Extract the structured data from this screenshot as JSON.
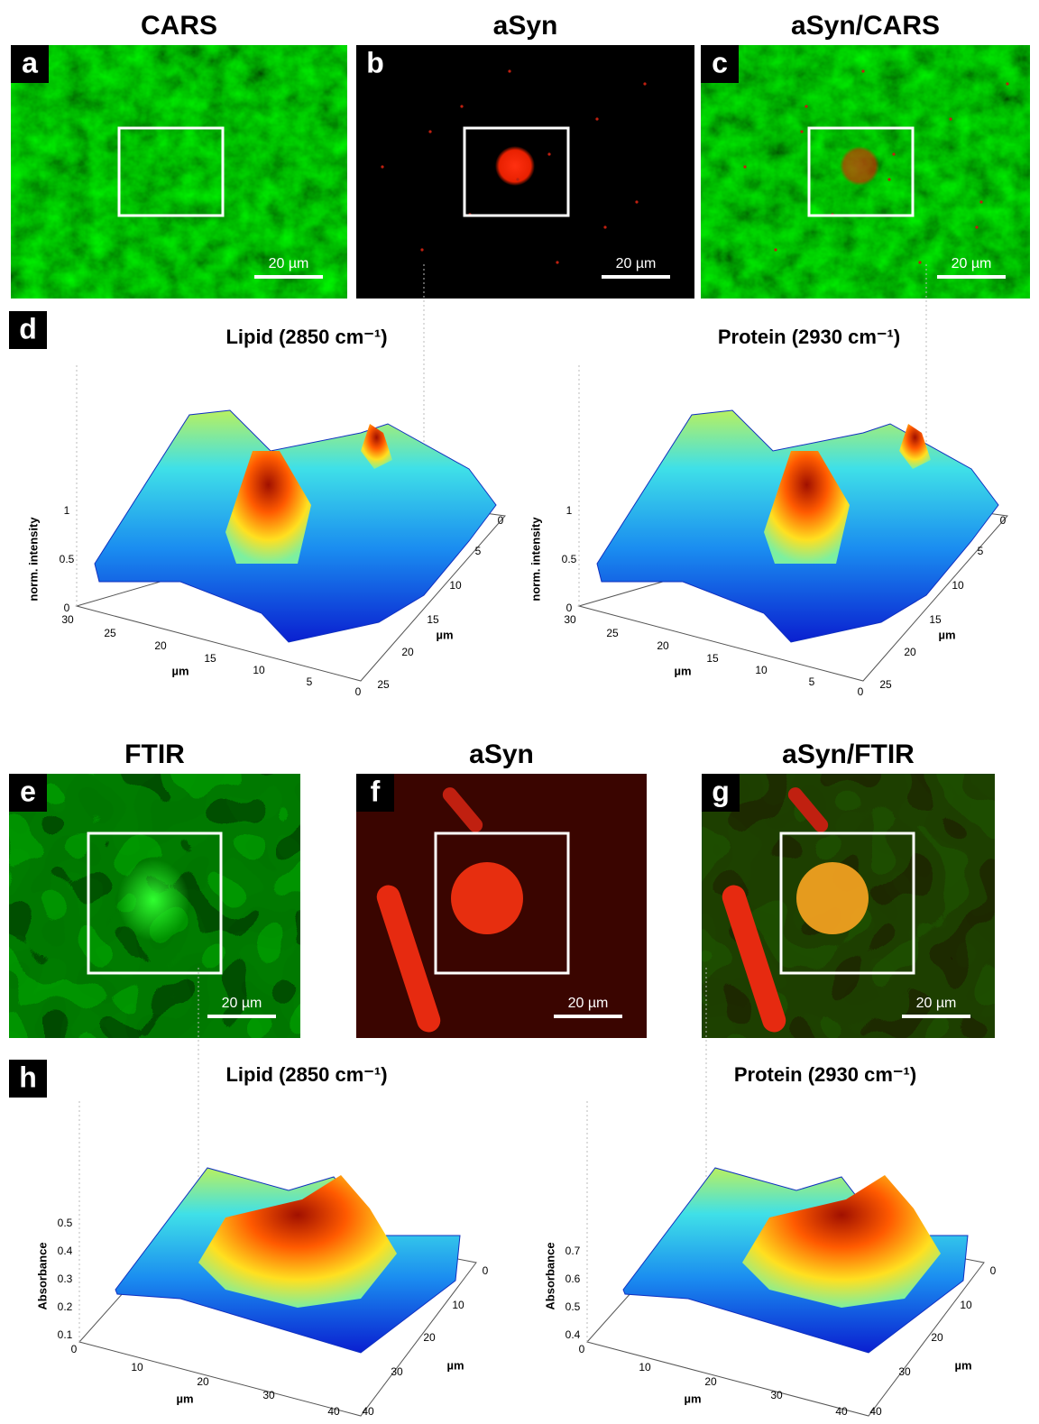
{
  "top_row": {
    "panels": [
      {
        "title": "CARS",
        "letter": "a",
        "scale_bar": "20 µm"
      },
      {
        "title": "aSyn",
        "letter": "b",
        "scale_bar": "20 µm"
      },
      {
        "title": "aSyn/CARS",
        "letter": "c",
        "scale_bar": "20 µm"
      }
    ]
  },
  "cars_plots": {
    "letter": "d",
    "plots": [
      {
        "title": "Lipid (2850 cm⁻¹)",
        "z_label": "norm. intensity",
        "x_label": "µm",
        "y_label": "µm",
        "z_ticks": [
          "0",
          "0.5",
          "1"
        ],
        "x_ticks": [
          "30",
          "25",
          "20",
          "15",
          "10",
          "5",
          "0"
        ],
        "y_ticks": [
          "0",
          "5",
          "10",
          "15",
          "20",
          "25"
        ]
      },
      {
        "title": "Protein (2930 cm⁻¹)",
        "z_label": "norm. intensity",
        "x_label": "µm",
        "y_label": "µm",
        "z_ticks": [
          "0",
          "0.5",
          "1"
        ],
        "x_ticks": [
          "30",
          "25",
          "20",
          "15",
          "10",
          "5",
          "0"
        ],
        "y_ticks": [
          "0",
          "5",
          "10",
          "15",
          "20",
          "25"
        ]
      }
    ]
  },
  "ftir_row": {
    "panels": [
      {
        "title": "FTIR",
        "letter": "e",
        "scale_bar": "20 µm"
      },
      {
        "title": "aSyn",
        "letter": "f",
        "scale_bar": "20 µm"
      },
      {
        "title": "aSyn/FTIR",
        "letter": "g",
        "scale_bar": "20 µm"
      }
    ]
  },
  "ftir_plots": {
    "letter": "h",
    "plots": [
      {
        "title": "Lipid (2850 cm⁻¹)",
        "z_label": "Absorbance",
        "x_label": "µm",
        "y_label": "µm",
        "z_ticks": [
          "0.1",
          "0.2",
          "0.3",
          "0.4",
          "0.5"
        ],
        "x_ticks": [
          "0",
          "10",
          "20",
          "30",
          "40"
        ],
        "y_ticks": [
          "0",
          "10",
          "20",
          "30",
          "40"
        ]
      },
      {
        "title": "Protein (2930 cm⁻¹)",
        "z_label": "Absorbance",
        "x_label": "µm",
        "y_label": "µm",
        "z_ticks": [
          "0.4",
          "0.5",
          "0.6",
          "0.7"
        ],
        "x_ticks": [
          "0",
          "10",
          "20",
          "30",
          "40"
        ],
        "y_ticks": [
          "0",
          "10",
          "20",
          "30",
          "40"
        ]
      }
    ]
  }
}
